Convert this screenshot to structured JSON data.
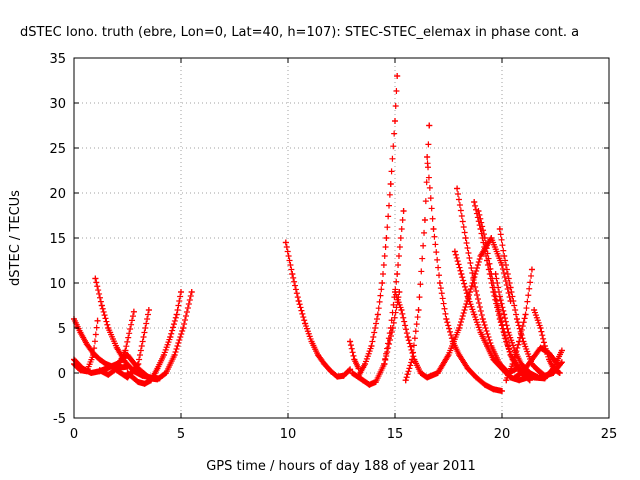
{
  "chart_data": {
    "type": "scatter",
    "title": "dSTEC Iono. truth (ebre, Lon=0, Lat=40, h=107): STEC-STEC_elemax in phase cont. a",
    "xlabel": "GPS time / hours of day 188 of year 2011",
    "ylabel": "dSTEC  / TECUs",
    "xlim": [
      0,
      25
    ],
    "ylim": [
      -5,
      35
    ],
    "xticks": [
      0,
      5,
      10,
      15,
      20,
      25
    ],
    "yticks": [
      -5,
      0,
      5,
      10,
      15,
      20,
      25,
      30,
      35
    ],
    "grid": true,
    "marker": "+",
    "color": "#ff0000",
    "series": [
      {
        "x": [
          0.0,
          0.3,
          0.6,
          0.9,
          1.2,
          1.5,
          1.8,
          2.1,
          2.5
        ],
        "y": [
          6.0,
          4.5,
          3.2,
          2.2,
          1.5,
          1.0,
          0.7,
          0.6,
          0.7
        ]
      },
      {
        "x": [
          0.0,
          0.3,
          0.6,
          0.9,
          1.1
        ],
        "y": [
          1.0,
          0.3,
          0.2,
          2.0,
          5.8
        ]
      },
      {
        "x": [
          0.0,
          0.4,
          0.8,
          1.2,
          1.6
        ],
        "y": [
          1.5,
          0.5,
          0.0,
          0.2,
          0.6
        ]
      },
      {
        "x": [
          1.0,
          1.3,
          1.6,
          2.0,
          2.4,
          2.8,
          3.2,
          3.6
        ],
        "y": [
          10.5,
          7.5,
          5.0,
          2.8,
          1.2,
          0.2,
          -0.3,
          -0.5
        ]
      },
      {
        "x": [
          1.2,
          1.6,
          2.0,
          2.4,
          2.8
        ],
        "y": [
          0.3,
          -0.2,
          0.5,
          2.5,
          6.8
        ]
      },
      {
        "x": [
          1.5,
          2.0,
          2.5,
          3.0,
          3.5,
          4.0
        ],
        "y": [
          0.5,
          1.0,
          2.0,
          0.5,
          -0.5,
          -0.6
        ]
      },
      {
        "x": [
          2.0,
          2.5,
          3.0,
          3.5
        ],
        "y": [
          0.3,
          -0.5,
          1.0,
          7.0
        ]
      },
      {
        "x": [
          2.5,
          3.0,
          3.3,
          3.6,
          3.9,
          4.2,
          4.5,
          4.8,
          5.0
        ],
        "y": [
          0.0,
          -1.0,
          -1.2,
          -0.8,
          0.5,
          2.0,
          4.0,
          6.5,
          9.0
        ]
      },
      {
        "x": [
          3.5,
          3.9,
          4.3,
          4.7,
          5.1,
          5.5
        ],
        "y": [
          -0.6,
          -0.7,
          0.0,
          2.0,
          5.0,
          9.0
        ]
      },
      {
        "x": [
          9.9,
          10.2,
          10.5,
          10.8,
          11.1,
          11.4,
          11.7,
          12.0,
          12.3,
          12.6,
          12.9
        ],
        "y": [
          14.5,
          11.0,
          8.0,
          5.5,
          3.5,
          2.0,
          1.0,
          0.2,
          -0.4,
          -0.3,
          0.4
        ]
      },
      {
        "x": [
          12.9,
          13.1,
          13.3
        ],
        "y": [
          3.5,
          1.5,
          0.5
        ]
      },
      {
        "x": [
          13.0,
          13.5,
          13.8,
          14.1,
          14.5,
          14.9,
          15.2
        ],
        "y": [
          0.0,
          -0.8,
          -1.3,
          -1.0,
          1.0,
          5.0,
          9.0
        ]
      },
      {
        "x": [
          13.3,
          13.6,
          13.9,
          14.2,
          14.4,
          14.6,
          14.8,
          15.0,
          15.1
        ],
        "y": [
          -0.3,
          1.0,
          3.0,
          6.5,
          10.0,
          15.0,
          21.0,
          28.0,
          33.0
        ]
      },
      {
        "x": [
          14.5,
          14.8,
          15.1,
          15.4
        ],
        "y": [
          1.0,
          5.0,
          11.0,
          18.0
        ]
      },
      {
        "x": [
          15.0,
          15.3,
          15.6,
          15.9,
          16.2,
          16.5
        ],
        "y": [
          9.0,
          7.0,
          4.0,
          1.5,
          0.0,
          -0.5
        ]
      },
      {
        "x": [
          15.5,
          15.8,
          16.1,
          16.4,
          16.6
        ],
        "y": [
          -0.8,
          1.5,
          7.0,
          17.0,
          27.5
        ]
      },
      {
        "x": [
          16.5,
          16.8,
          17.1,
          17.4,
          17.7,
          18.0,
          18.4,
          18.8,
          19.2,
          19.6,
          20.0
        ],
        "y": [
          24.0,
          16.0,
          10.0,
          6.0,
          3.5,
          2.0,
          0.5,
          -0.5,
          -1.3,
          -1.8,
          -2.0
        ]
      },
      {
        "x": [
          16.5,
          17.0,
          17.5,
          18.0,
          18.5,
          19.0,
          19.5,
          20.0,
          20.4
        ],
        "y": [
          -0.5,
          0.0,
          2.0,
          5.0,
          9.0,
          13.0,
          15.0,
          12.0,
          8.0
        ]
      },
      {
        "x": [
          17.9,
          18.3,
          18.7,
          19.1,
          19.5,
          19.9,
          20.3,
          20.7
        ],
        "y": [
          20.5,
          15.0,
          10.0,
          6.0,
          3.0,
          1.0,
          0.0,
          0.5
        ]
      },
      {
        "x": [
          17.8,
          18.1,
          18.4,
          18.7,
          19.0,
          19.3,
          19.6,
          20.0,
          20.4,
          20.8,
          21.2
        ],
        "y": [
          13.5,
          11.0,
          8.5,
          6.5,
          4.5,
          3.0,
          1.5,
          0.5,
          -0.5,
          -0.8,
          -0.5
        ]
      },
      {
        "x": [
          18.7,
          19.0,
          19.3,
          19.6,
          19.9,
          20.2,
          20.5,
          20.9,
          21.3
        ],
        "y": [
          19.0,
          16.0,
          12.5,
          9.0,
          6.0,
          3.5,
          1.5,
          0.0,
          -0.8
        ]
      },
      {
        "x": [
          18.9,
          19.2,
          19.5,
          19.8,
          20.1,
          20.4,
          20.8,
          21.2
        ],
        "y": [
          18.0,
          15.0,
          11.0,
          7.5,
          4.5,
          2.0,
          0.5,
          -0.3
        ]
      },
      {
        "x": [
          19.7,
          19.9,
          20.1,
          20.3,
          20.6,
          20.9,
          21.3,
          21.7
        ],
        "y": [
          11.0,
          8.5,
          6.5,
          4.5,
          2.5,
          1.0,
          0.0,
          -0.5
        ]
      },
      {
        "x": [
          19.9,
          20.1,
          20.4,
          20.7,
          21.0,
          21.4,
          21.8
        ],
        "y": [
          16.0,
          13.0,
          9.5,
          6.0,
          3.5,
          1.0,
          0.0
        ]
      },
      {
        "x": [
          20.2,
          20.5,
          20.8,
          21.1,
          21.4
        ],
        "y": [
          -0.8,
          1.0,
          3.5,
          6.5,
          11.5
        ]
      },
      {
        "x": [
          20.6,
          21.0,
          21.4,
          21.8,
          22.2,
          22.6
        ],
        "y": [
          -0.5,
          0.2,
          1.5,
          2.8,
          2.2,
          1.0
        ]
      },
      {
        "x": [
          21.5,
          21.8,
          22.0,
          22.2,
          22.4,
          22.7
        ],
        "y": [
          7.0,
          5.0,
          3.0,
          1.5,
          0.5,
          0.0
        ]
      },
      {
        "x": [
          21.0,
          21.5,
          22.0,
          22.4,
          22.8
        ],
        "y": [
          0.0,
          -0.5,
          -0.6,
          0.5,
          2.5
        ]
      },
      {
        "x": [
          21.6,
          22.0,
          22.4,
          22.8
        ],
        "y": [
          0.5,
          -0.3,
          0.0,
          1.2
        ]
      }
    ]
  }
}
